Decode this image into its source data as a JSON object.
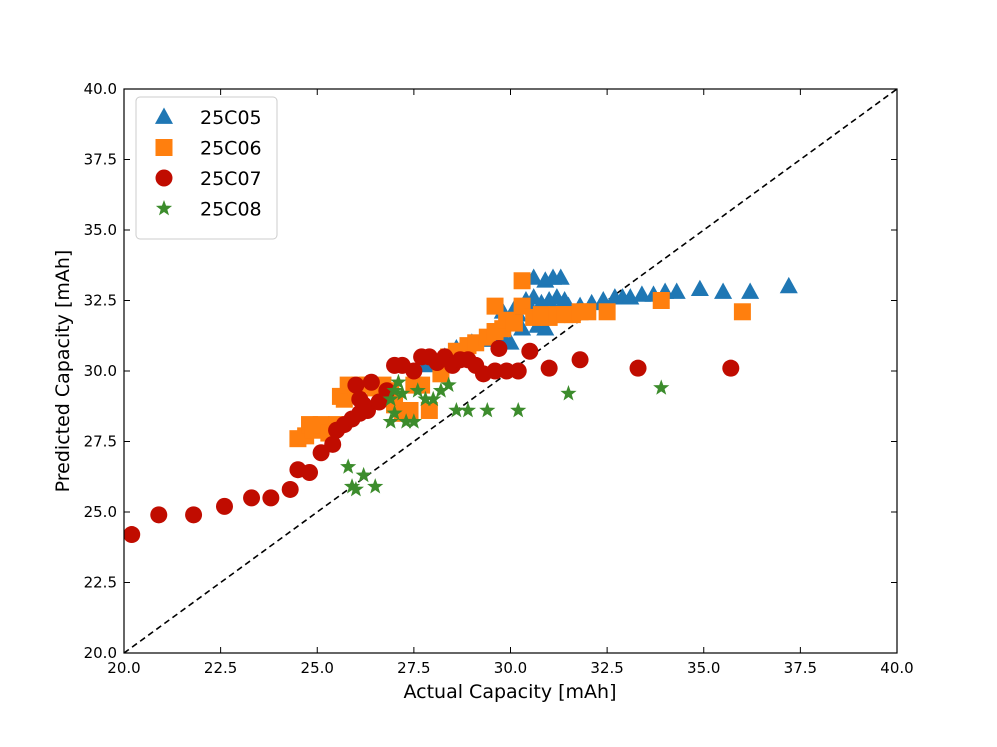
{
  "chart_data": {
    "type": "scatter",
    "title": "",
    "xlabel": "Actual Capacity [mAh]",
    "ylabel": "Predicted Capacity [mAh]",
    "xlim": [
      20.0,
      40.0
    ],
    "ylim": [
      20.0,
      40.0
    ],
    "xticks": [
      "20.0",
      "22.5",
      "25.0",
      "27.5",
      "30.0",
      "32.5",
      "35.0",
      "37.5",
      "40.0"
    ],
    "yticks": [
      "20.0",
      "22.5",
      "25.0",
      "27.5",
      "30.0",
      "32.5",
      "35.0",
      "37.5",
      "40.0"
    ],
    "grid": false,
    "legend_position": "top-left",
    "reference_line": {
      "style": "dashed",
      "color": "#000000",
      "from": [
        20,
        20
      ],
      "to": [
        40,
        40
      ]
    },
    "series": [
      {
        "name": "25C05",
        "marker": "triangle",
        "color": "#1f77b4",
        "points": [
          [
            27.8,
            30.2
          ],
          [
            28.3,
            30.5
          ],
          [
            28.6,
            30.8
          ],
          [
            29.0,
            31.0
          ],
          [
            29.4,
            31.1
          ],
          [
            29.8,
            31.2
          ],
          [
            30.0,
            31.0
          ],
          [
            30.3,
            31.5
          ],
          [
            30.7,
            31.6
          ],
          [
            30.9,
            31.5
          ],
          [
            30.2,
            32.0
          ],
          [
            30.5,
            32.3
          ],
          [
            30.8,
            32.4
          ],
          [
            31.0,
            32.5
          ],
          [
            31.2,
            32.6
          ],
          [
            31.4,
            32.5
          ],
          [
            30.4,
            32.5
          ],
          [
            30.6,
            32.6
          ],
          [
            29.8,
            32.1
          ],
          [
            30.1,
            32.2
          ],
          [
            30.6,
            33.3
          ],
          [
            30.9,
            33.2
          ],
          [
            31.1,
            33.3
          ],
          [
            31.3,
            33.3
          ],
          [
            31.5,
            32.3
          ],
          [
            31.8,
            32.3
          ],
          [
            32.1,
            32.4
          ],
          [
            32.4,
            32.5
          ],
          [
            32.7,
            32.6
          ],
          [
            32.9,
            32.6
          ],
          [
            33.1,
            32.6
          ],
          [
            33.4,
            32.7
          ],
          [
            33.7,
            32.7
          ],
          [
            34.0,
            32.8
          ],
          [
            34.3,
            32.8
          ],
          [
            34.9,
            32.9
          ],
          [
            35.5,
            32.8
          ],
          [
            36.2,
            32.8
          ],
          [
            37.2,
            33.0
          ]
        ]
      },
      {
        "name": "25C06",
        "marker": "square",
        "color": "#ff7f0e",
        "points": [
          [
            24.5,
            27.6
          ],
          [
            24.7,
            27.7
          ],
          [
            24.8,
            28.1
          ],
          [
            24.9,
            27.9
          ],
          [
            25.1,
            28.1
          ],
          [
            25.3,
            27.8
          ],
          [
            25.5,
            28.1
          ],
          [
            25.6,
            29.1
          ],
          [
            25.7,
            29.0
          ],
          [
            25.8,
            29.5
          ],
          [
            26.0,
            29.4
          ],
          [
            26.1,
            29.5
          ],
          [
            26.3,
            29.5
          ],
          [
            26.5,
            29.4
          ],
          [
            26.7,
            29.5
          ],
          [
            26.9,
            29.3
          ],
          [
            27.0,
            28.8
          ],
          [
            27.2,
            28.5
          ],
          [
            27.4,
            28.6
          ],
          [
            27.5,
            29.5
          ],
          [
            27.7,
            29.5
          ],
          [
            27.9,
            28.6
          ],
          [
            28.2,
            29.9
          ],
          [
            28.4,
            30.5
          ],
          [
            28.6,
            30.7
          ],
          [
            28.9,
            30.9
          ],
          [
            29.1,
            31.0
          ],
          [
            29.4,
            31.2
          ],
          [
            29.6,
            31.4
          ],
          [
            29.8,
            31.5
          ],
          [
            29.6,
            32.3
          ],
          [
            29.9,
            31.8
          ],
          [
            30.1,
            31.7
          ],
          [
            30.3,
            32.3
          ],
          [
            30.6,
            31.9
          ],
          [
            30.8,
            32.0
          ],
          [
            31.0,
            31.9
          ],
          [
            31.2,
            32.0
          ],
          [
            31.4,
            32.0
          ],
          [
            31.6,
            32.0
          ],
          [
            31.8,
            32.1
          ],
          [
            32.0,
            32.1
          ],
          [
            32.5,
            32.1
          ],
          [
            30.3,
            33.2
          ],
          [
            33.9,
            32.5
          ],
          [
            36.0,
            32.1
          ]
        ]
      },
      {
        "name": "25C07",
        "marker": "circle",
        "color": "#c00c00",
        "points": [
          [
            20.2,
            24.2
          ],
          [
            20.9,
            24.9
          ],
          [
            21.8,
            24.9
          ],
          [
            22.6,
            25.2
          ],
          [
            23.3,
            25.5
          ],
          [
            23.8,
            25.5
          ],
          [
            24.3,
            25.8
          ],
          [
            24.5,
            26.5
          ],
          [
            24.8,
            26.4
          ],
          [
            25.1,
            27.1
          ],
          [
            25.4,
            27.4
          ],
          [
            25.5,
            27.9
          ],
          [
            25.7,
            28.1
          ],
          [
            25.9,
            28.3
          ],
          [
            26.1,
            28.5
          ],
          [
            26.3,
            28.6
          ],
          [
            26.0,
            29.5
          ],
          [
            26.1,
            29.0
          ],
          [
            26.2,
            28.8
          ],
          [
            26.4,
            29.6
          ],
          [
            26.6,
            28.9
          ],
          [
            26.8,
            29.3
          ],
          [
            27.0,
            30.2
          ],
          [
            27.2,
            30.2
          ],
          [
            27.5,
            30.0
          ],
          [
            27.7,
            30.5
          ],
          [
            27.9,
            30.5
          ],
          [
            28.1,
            30.3
          ],
          [
            28.3,
            30.5
          ],
          [
            28.5,
            30.2
          ],
          [
            28.7,
            30.4
          ],
          [
            28.9,
            30.4
          ],
          [
            29.1,
            30.2
          ],
          [
            29.3,
            29.9
          ],
          [
            29.7,
            30.8
          ],
          [
            29.6,
            30.0
          ],
          [
            29.9,
            30.0
          ],
          [
            30.2,
            30.0
          ],
          [
            30.5,
            30.7
          ],
          [
            31.0,
            30.1
          ],
          [
            31.8,
            30.4
          ],
          [
            33.3,
            30.1
          ],
          [
            35.7,
            30.1
          ]
        ]
      },
      {
        "name": "25C08",
        "marker": "star",
        "color": "#3c8c2c",
        "points": [
          [
            25.8,
            26.6
          ],
          [
            25.9,
            25.9
          ],
          [
            26.0,
            25.8
          ],
          [
            26.2,
            26.3
          ],
          [
            26.5,
            25.9
          ],
          [
            26.9,
            28.2
          ],
          [
            27.0,
            28.5
          ],
          [
            26.9,
            29.0
          ],
          [
            27.0,
            29.3
          ],
          [
            27.1,
            29.6
          ],
          [
            27.2,
            29.2
          ],
          [
            27.3,
            28.2
          ],
          [
            27.5,
            28.2
          ],
          [
            27.6,
            29.3
          ],
          [
            27.8,
            29.0
          ],
          [
            28.0,
            29.0
          ],
          [
            28.2,
            29.3
          ],
          [
            28.4,
            29.5
          ],
          [
            28.6,
            28.6
          ],
          [
            28.9,
            28.6
          ],
          [
            29.4,
            28.6
          ],
          [
            30.2,
            28.6
          ],
          [
            31.5,
            29.2
          ],
          [
            33.9,
            29.4
          ]
        ]
      }
    ]
  }
}
